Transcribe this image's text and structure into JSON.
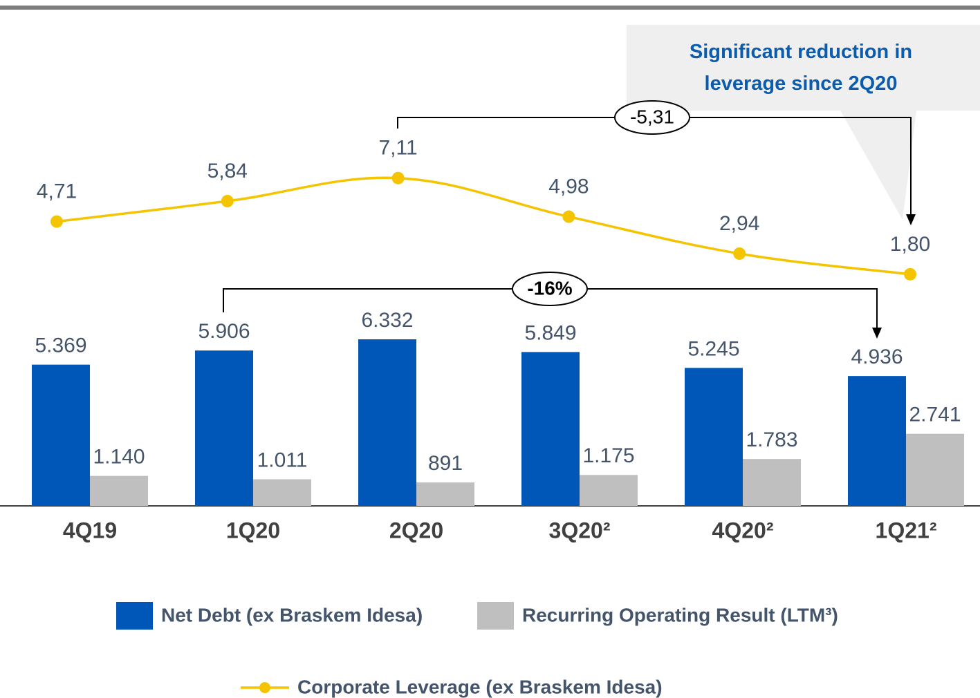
{
  "chart_data": {
    "type": "bar",
    "categories": [
      "4Q19",
      "1Q20",
      "2Q20",
      "3Q20²",
      "4Q20²",
      "1Q21²"
    ],
    "ylim": [
      0,
      8000
    ],
    "y2lim": [
      0,
      10
    ],
    "series": [
      {
        "name": "Net Debt (ex Braskem Idesa)",
        "color": "#0057b8",
        "type": "bar",
        "values": [
          5369,
          5906,
          6332,
          5849,
          5245,
          4936
        ],
        "value_labels": [
          "5.369",
          "5.906",
          "6.332",
          "5.849",
          "5.245",
          "4.936"
        ]
      },
      {
        "name": "Recurring Operating Result (LTM³)",
        "color": "#bfbfbf",
        "type": "bar",
        "values": [
          1140,
          1011,
          891,
          1175,
          1783,
          2741
        ],
        "value_labels": [
          "1.140",
          "1.011",
          "891",
          "1.175",
          "1.783",
          "2.741"
        ]
      },
      {
        "name": "Corporate Leverage (ex Braskem Idesa)",
        "color": "#f5c400",
        "type": "line",
        "axis": "y2",
        "values": [
          4.71,
          5.84,
          7.11,
          4.98,
          2.94,
          1.8
        ],
        "value_labels": [
          "4,71",
          "5,84",
          "7,11",
          "4,98",
          "2,94",
          "1,80"
        ]
      }
    ],
    "annotations": {
      "callout": "Significant reduction in leverage since 2Q20",
      "leverage_change": "-5,31",
      "debt_change": "-16%"
    }
  }
}
